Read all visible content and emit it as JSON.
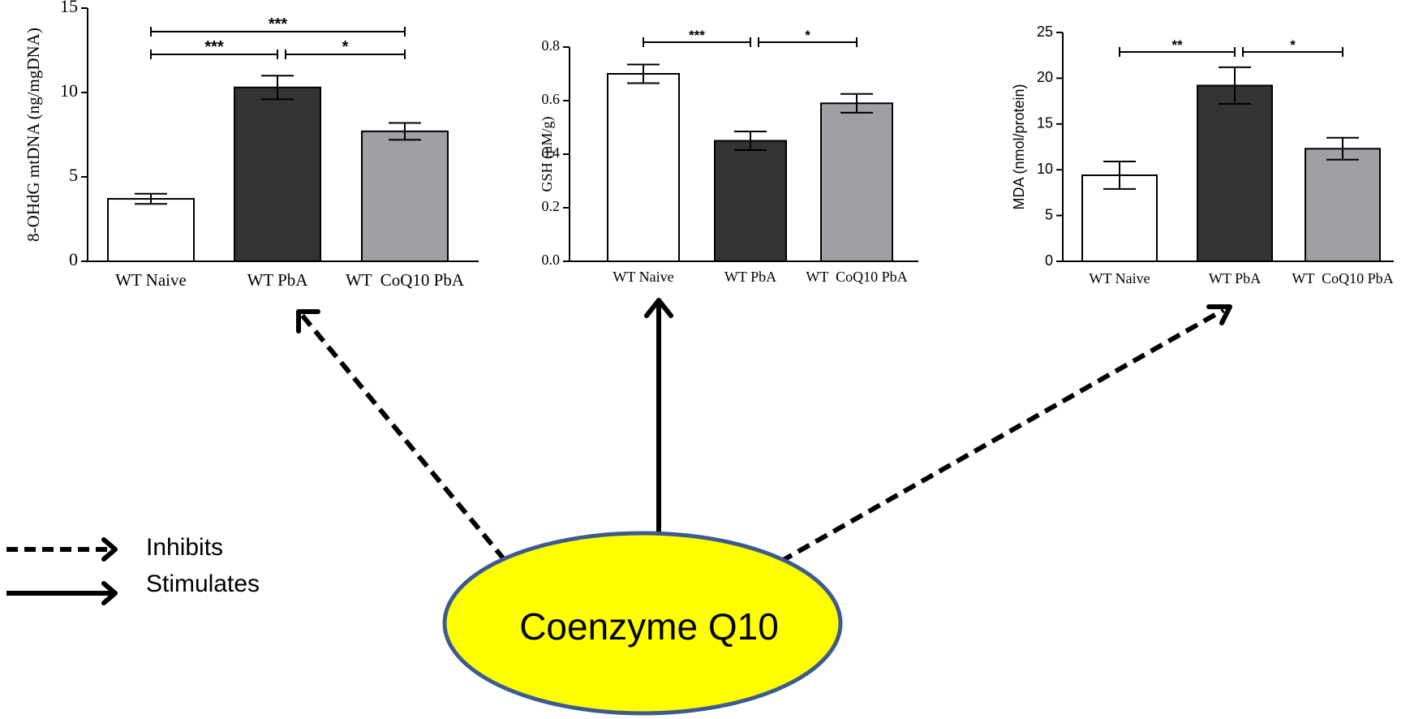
{
  "chart_data": [
    {
      "type": "bar",
      "categories": [
        "WT Naive",
        "WT PbA",
        "WT  CoQ10 PbA"
      ],
      "values": [
        3.7,
        10.3,
        7.7
      ],
      "errors": [
        0.3,
        0.7,
        0.5
      ],
      "colors": [
        "#ffffff",
        "#333333",
        "#a0a0a4"
      ],
      "ylabel": "8-OHdG mtDNA (ng/mgDNA)",
      "ylim": [
        0,
        15
      ],
      "yticks": [
        "0",
        "5",
        "10",
        "15"
      ],
      "significance": [
        {
          "from": 0,
          "to": 2,
          "label": "***"
        },
        {
          "from": 0,
          "to": 1,
          "label": "***"
        },
        {
          "from": 1,
          "to": 2,
          "label": "*"
        }
      ]
    },
    {
      "type": "bar",
      "categories": [
        "WT Naive",
        "WT PbA",
        "WT  CoQ10 PbA"
      ],
      "values": [
        0.7,
        0.45,
        0.59
      ],
      "errors": [
        0.035,
        0.035,
        0.035
      ],
      "colors": [
        "#ffffff",
        "#333333",
        "#a0a0a4"
      ],
      "ylabel": "GSH (µM/g)",
      "ylim": [
        0,
        0.8
      ],
      "yticks": [
        "0.0",
        "0.2",
        "0.4",
        "0.6",
        "0.8"
      ],
      "significance": [
        {
          "from": 0,
          "to": 1,
          "label": "***"
        },
        {
          "from": 1,
          "to": 2,
          "label": "*"
        }
      ]
    },
    {
      "type": "bar",
      "categories": [
        "WT Naive",
        "WT PbA",
        "WT  CoQ10 PbA"
      ],
      "values": [
        9.4,
        19.2,
        12.3
      ],
      "errors": [
        1.5,
        2.0,
        1.2
      ],
      "colors": [
        "#ffffff",
        "#333333",
        "#a0a0a4"
      ],
      "ylabel": "MDA (nmol/protein)",
      "ylim": [
        0,
        25
      ],
      "yticks": [
        "0",
        "5",
        "10",
        "15",
        "20",
        "25"
      ],
      "significance": [
        {
          "from": 0,
          "to": 1,
          "label": "**"
        },
        {
          "from": 1,
          "to": 2,
          "label": "*"
        }
      ]
    }
  ],
  "diagram": {
    "center_label": "Coenzyme Q10",
    "center_fill": "#ffff00",
    "center_stroke": "#3d5b8f",
    "arrows": [
      {
        "target": "8-OHdG",
        "effect": "inhibits"
      },
      {
        "target": "GSH",
        "effect": "stimulates"
      },
      {
        "target": "MDA",
        "effect": "inhibits"
      }
    ]
  },
  "legend": {
    "inhibits_label": "Inhibits",
    "stimulates_label": "Stimulates"
  }
}
